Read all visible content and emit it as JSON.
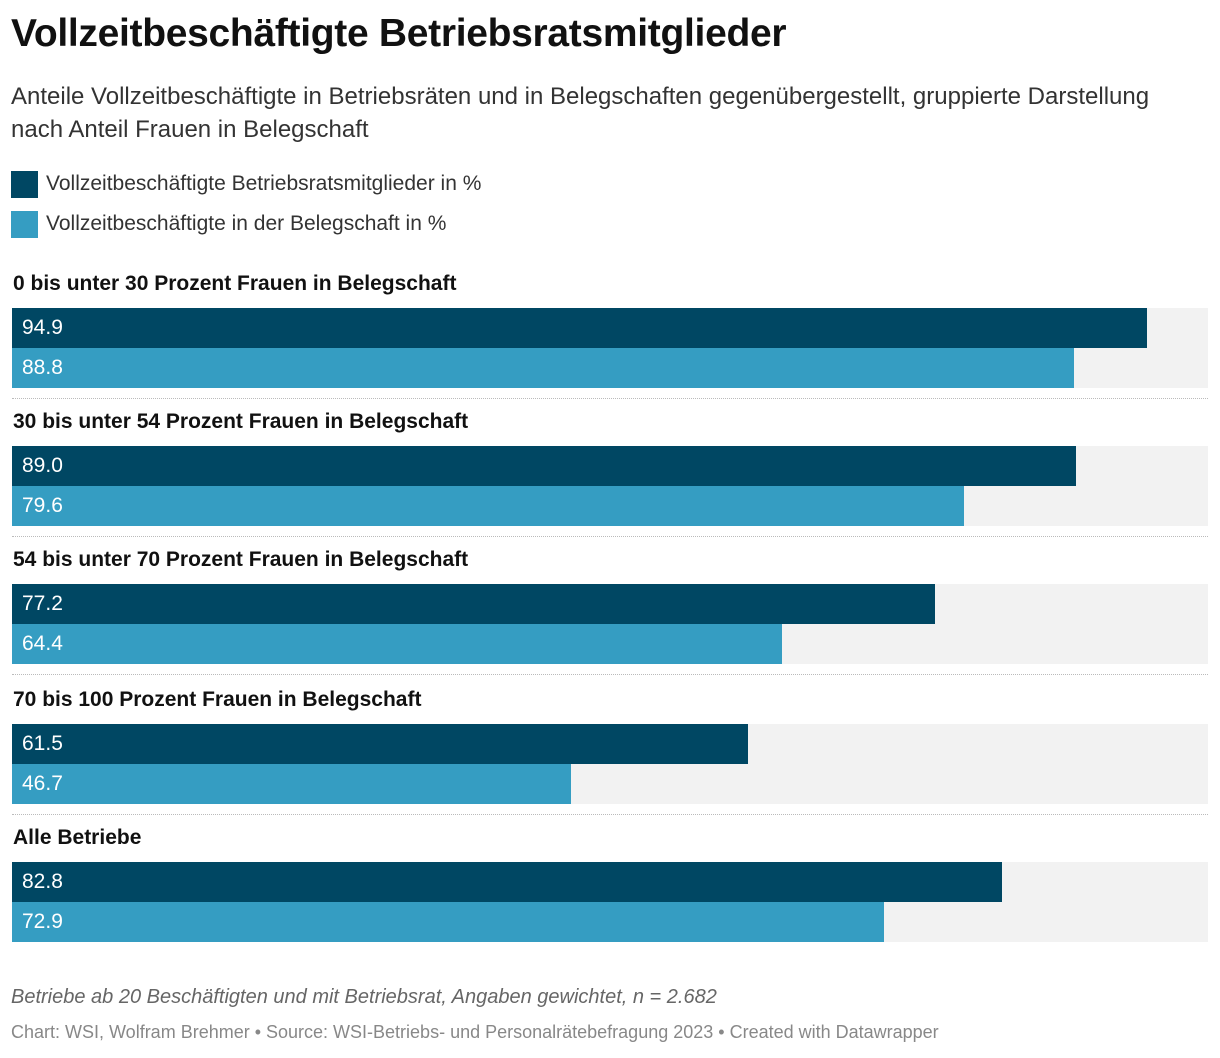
{
  "chart_data": {
    "type": "bar",
    "title": "Vollzeitbeschäftigte Betriebsratsmitglieder",
    "subtitle": "Anteile Vollzeitbeschäftigte in Betriebsräten und in Belegschaften gegenübergestellt, gruppierte Darstellung nach Anteil Frauen in Belegschaft",
    "orientation": "horizontal",
    "xlim": [
      0,
      100
    ],
    "grid": false,
    "legend_placement": "top-left",
    "categories": [
      "0 bis unter 30 Prozent Frauen in Belegschaft",
      "30 bis unter 54 Prozent Frauen in Belegschaft",
      "54 bis unter 70 Prozent Frauen in Belegschaft",
      "70 bis 100 Prozent Frauen in Belegschaft",
      "Alle Betriebe"
    ],
    "series": [
      {
        "name": "Vollzeitbeschäftigte Betriebsratsmitglieder in %",
        "color": "#004763",
        "values": [
          94.9,
          89.0,
          77.2,
          61.5,
          82.8
        ],
        "labels": [
          "94.9",
          "89.0",
          "77.2",
          "61.5",
          "82.8"
        ]
      },
      {
        "name": "Vollzeitbeschäftigte in der Belegschaft in %",
        "color": "#359dc2",
        "values": [
          88.8,
          79.6,
          64.4,
          46.7,
          72.9
        ],
        "labels": [
          "88.8",
          "79.6",
          "64.4",
          "46.7",
          "72.9"
        ]
      }
    ],
    "note": "Betriebe ab 20 Beschäftigten und mit Betriebsrat, Angaben gewichtet, n = 2.682",
    "footer": "Chart: WSI, Wolfram Brehmer • Source: WSI-Betriebs- und Personalrätebefragung 2023 • Created with Datawrapper"
  },
  "colors": {
    "track": "#f2f2f2",
    "value_text": "#ffffff"
  }
}
